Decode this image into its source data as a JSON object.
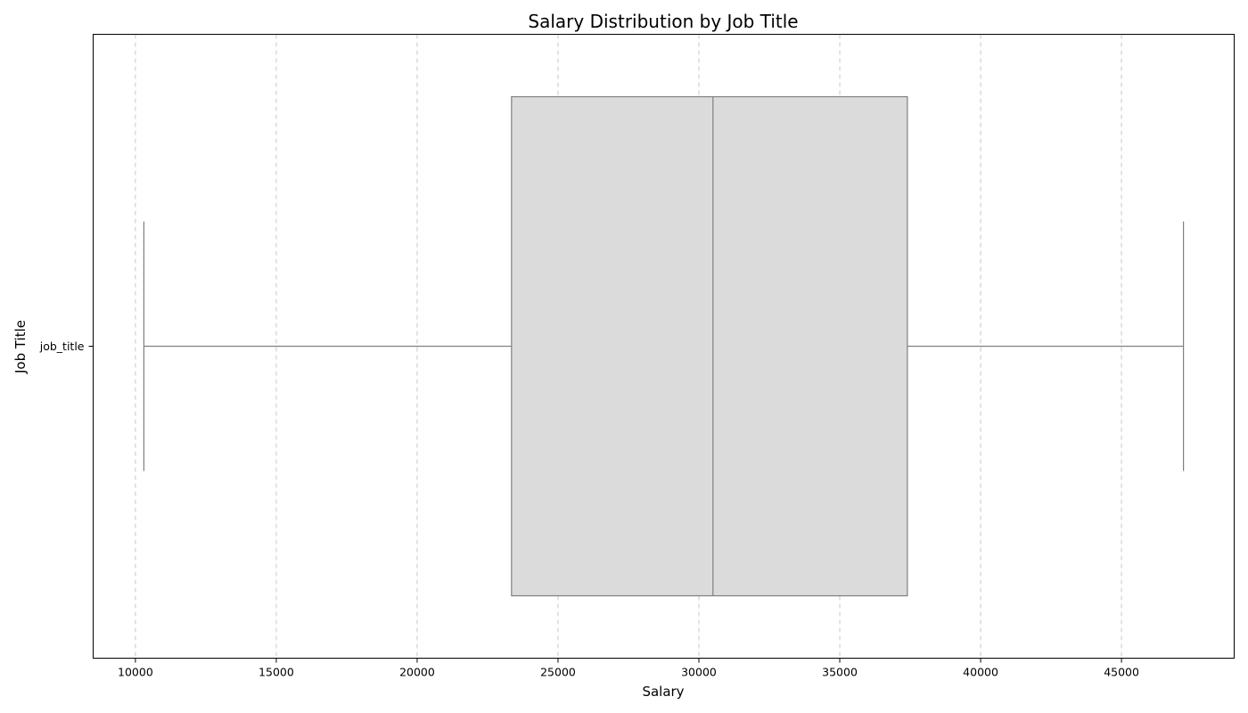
{
  "chart_data": {
    "type": "box",
    "title": "Salary Distribution by Job Title",
    "xlabel": "Salary",
    "ylabel": "Job Title",
    "xlim": [
      8500,
      49000
    ],
    "x_ticks": [
      10000,
      15000,
      20000,
      25000,
      30000,
      35000,
      40000,
      45000
    ],
    "x_tick_labels": [
      "10000",
      "15000",
      "20000",
      "25000",
      "30000",
      "35000",
      "40000",
      "45000"
    ],
    "grid": "x-dashed",
    "categories": [
      "job_title"
    ],
    "boxes": [
      {
        "category": "job_title",
        "min": 10300,
        "q1": 23350,
        "median": 30500,
        "q3": 37400,
        "max": 47200
      }
    ],
    "colors": {
      "box_fill": "#dbdbdb",
      "box_edge": "#7f7f7f",
      "grid": "#c8c8c8"
    }
  }
}
